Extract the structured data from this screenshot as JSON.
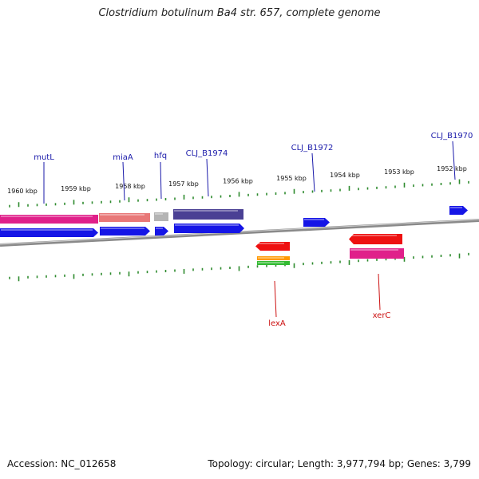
{
  "title": "Clostridium botulinum Ba4 str. 657, complete genome",
  "footer": {
    "accession": "Accession: NC_012658",
    "summary": "Topology: circular; Length: 3,977,794 bp; Genes: 3,799"
  },
  "scale": {
    "labels": [
      "1960 kbp",
      "1959 kbp",
      "1958 kbp",
      "1957 kbp",
      "1956 kbp",
      "1955 kbp",
      "1954 kbp",
      "1953 kbp",
      "1952 kbp"
    ]
  },
  "gene_labels": {
    "top": [
      "mutL",
      "miaA",
      "hfq",
      "CLJ_B1974",
      "CLJ_B1972",
      "CLJ_B1970"
    ],
    "bottom": [
      "lexA",
      "xerC"
    ]
  },
  "colors": {
    "tick": "#2e8b2e",
    "top_label": "#1a1aaa",
    "bottom_label": "#cc1111",
    "cds_blue": "#1515e6",
    "pink": "#e0208a",
    "salmon": "#e87878",
    "gray": "#b4b4b4",
    "indigo": "#4a4094",
    "red": "#ee1111",
    "orange": "#ff9900",
    "green": "#33bb33",
    "backbone": "#8a8a8a"
  }
}
